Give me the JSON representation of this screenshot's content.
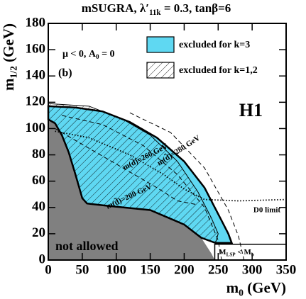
{
  "chart_data": {
    "type": "region",
    "title": [
      "mSUGRA, λ′",
      "11k",
      " = 0.3, tanβ=6"
    ],
    "xlabel": [
      "m",
      "0",
      " (GeV)"
    ],
    "ylabel": [
      "m",
      "1/2",
      " (GeV)"
    ],
    "xlim": [
      0,
      350
    ],
    "ylim": [
      0,
      180
    ],
    "xticks": [
      0,
      50,
      100,
      150,
      200,
      250,
      300,
      350
    ],
    "yticks": [
      0,
      20,
      40,
      60,
      80,
      100,
      120,
      140,
      160,
      180
    ],
    "series": [
      {
        "name": "excluded for k=3",
        "color": "#5fd8f2",
        "fill": "solid",
        "x": [
          0,
          40,
          80,
          120,
          160,
          200,
          230,
          255,
          265,
          270,
          246,
          225,
          200,
          150,
          91,
          57,
          50,
          40,
          30,
          20,
          10,
          0
        ],
        "y": [
          117,
          116,
          113,
          105,
          93,
          75,
          55,
          30,
          20,
          13,
          13,
          17,
          27,
          38,
          41,
          43,
          47,
          65,
          82,
          95,
          104,
          107
        ]
      },
      {
        "name": "excluded for k=1,2",
        "color": "#000000",
        "fill": "hatch",
        "x": [
          0,
          60,
          110,
          150,
          190,
          220,
          240,
          250,
          246,
          225,
          200,
          150,
          91,
          57,
          50,
          40,
          30,
          20,
          10,
          0
        ],
        "y": [
          119,
          117,
          107,
          95,
          75,
          52,
          32,
          20,
          13,
          17,
          27,
          38,
          41,
          43,
          47,
          65,
          82,
          95,
          104,
          107
        ]
      }
    ],
    "not_allowed": {
      "color": "#808080",
      "x": [
        0,
        10,
        20,
        30,
        40,
        50,
        57,
        91,
        150,
        200,
        225,
        240,
        245,
        0
      ],
      "y": [
        107,
        104,
        95,
        82,
        65,
        47,
        43,
        41,
        38,
        27,
        17,
        5,
        0,
        0
      ]
    },
    "curves": [
      {
        "style": "dashed",
        "label": "m(d̃)=280 GeV",
        "x": [
          120,
          180,
          230,
          265,
          280,
          288
        ],
        "y": [
          112,
          97,
          70,
          38,
          18,
          0
        ]
      },
      {
        "style": "dashed",
        "label": "m(d̃)=260 GeV",
        "x": [
          20,
          80,
          140,
          190,
          230,
          250,
          255
        ],
        "y": [
          110,
          103,
          87,
          65,
          40,
          15,
          0
        ]
      },
      {
        "style": "dashed",
        "label": "m(d̃)=200 GeV",
        "x": [
          10,
          60,
          110,
          160,
          190,
          220
        ],
        "y": [
          100,
          85,
          70,
          55,
          45,
          42
        ]
      },
      {
        "style": "dotted",
        "label": "D0 limit",
        "x": [
          10,
          60,
          120,
          170,
          200,
          230,
          280,
          350
        ],
        "y": [
          98,
          93,
          80,
          65,
          54,
          46,
          45,
          46
        ]
      }
    ],
    "lsp_box": {
      "label": [
        "M",
        "LSP",
        " < M",
        "b"
      ],
      "x": [
        245,
        350
      ],
      "y": [
        0,
        12
      ]
    },
    "annotations": {
      "params": [
        "μ < 0, A",
        "0",
        " = 0"
      ],
      "panel": "(b)",
      "experiment": "H1",
      "region": "not allowed"
    }
  }
}
